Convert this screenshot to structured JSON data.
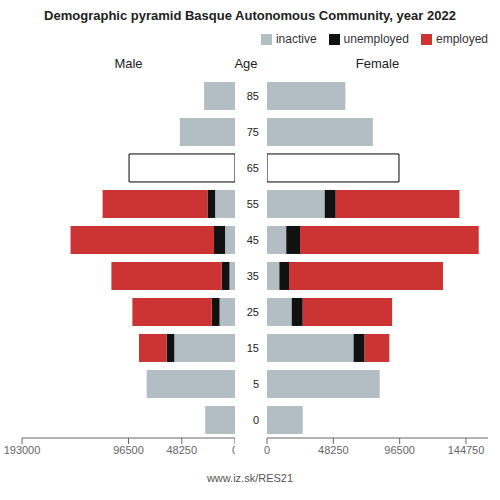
{
  "title": "Demographic pyramid Basque Autonomous Community, year 2022",
  "annotations": [
    "www.iz.sk/RES21"
  ],
  "chart_data": [
    {
      "type": "bar",
      "orientation": "horizontal",
      "stacked": true,
      "title": "Male",
      "categories": [
        85,
        75,
        65,
        55,
        45,
        35,
        25,
        15,
        5,
        0
      ],
      "xlim": [
        193000,
        0
      ],
      "xticks": [
        193000,
        96500,
        48250,
        0
      ],
      "series": [
        {
          "name": "inactive",
          "color": "#b2bec3",
          "colors": [
            "#b2bec3",
            "#b2bec3",
            "#ffffff",
            "#b2bec3",
            "#b2bec3",
            "#b2bec3",
            "#b2bec3",
            "#b2bec3",
            "#b2bec3",
            "#b2bec3"
          ],
          "values": [
            28000,
            50000,
            96000,
            18000,
            9000,
            5000,
            14000,
            55000,
            80000,
            27000
          ]
        },
        {
          "name": "unemployed",
          "color": "#111111",
          "values": [
            0,
            0,
            0,
            7000,
            10000,
            7000,
            7000,
            7000,
            0,
            0
          ]
        },
        {
          "name": "employed",
          "color": "#cc3333",
          "values": [
            0,
            0,
            0,
            95000,
            130000,
            100000,
            72000,
            25000,
            0,
            0
          ]
        }
      ]
    },
    {
      "type": "bar",
      "orientation": "horizontal",
      "stacked": true,
      "title": "Female",
      "ylabel": "Age",
      "legend": "upper right",
      "categories": [
        85,
        75,
        65,
        55,
        45,
        35,
        25,
        15,
        5,
        0
      ],
      "xlim": [
        0,
        160750
      ],
      "xticks": [
        0,
        48250,
        96500,
        144750
      ],
      "series": [
        {
          "name": "inactive",
          "color": "#b2bec3",
          "colors": [
            "#b2bec3",
            "#b2bec3",
            "#ffffff",
            "#b2bec3",
            "#b2bec3",
            "#b2bec3",
            "#b2bec3",
            "#b2bec3",
            "#b2bec3",
            "#b2bec3"
          ],
          "values": [
            57000,
            77000,
            96000,
            42000,
            14000,
            9000,
            18000,
            63000,
            82000,
            26000
          ]
        },
        {
          "name": "unemployed",
          "color": "#111111",
          "values": [
            0,
            0,
            0,
            8000,
            10000,
            7000,
            8000,
            8000,
            0,
            0
          ]
        },
        {
          "name": "employed",
          "color": "#cc3333",
          "values": [
            0,
            0,
            0,
            90000,
            130000,
            112000,
            65000,
            18000,
            0,
            0
          ]
        }
      ]
    }
  ]
}
